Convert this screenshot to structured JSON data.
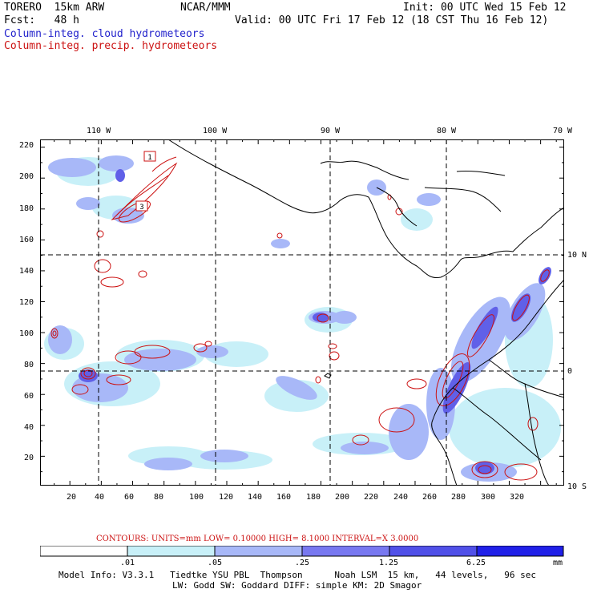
{
  "header": {
    "model": "TORERO  15km ARW",
    "org": "NCAR/MMM",
    "init": "Init: 00 UTC Wed 15 Feb 12",
    "fcst": "Fcst:   48 h",
    "valid": "Valid: 00 UTC Fri 17 Feb 12 (18 CST Thu 16 Feb 12)",
    "field1": "Column-integ. cloud hydrometeors",
    "field2": "Column-integ. precip. hydrometeors"
  },
  "colors": {
    "field1": "#2222cc",
    "field2": "#cc1111",
    "grid": "#000000",
    "shade": [
      "#ffffff",
      "#c8f0f8",
      "#a8b8f8",
      "#7878f0",
      "#5050e8",
      "#2020e8"
    ]
  },
  "map": {
    "lon_labels": [
      "110 W",
      "100 W",
      "90 W",
      "80 W",
      "70 W"
    ],
    "lat_labels": [
      "10 N",
      "0",
      "10 S"
    ],
    "x_ticks": [
      "20",
      "40",
      "60",
      "80",
      "100",
      "120",
      "140",
      "160",
      "180",
      "200",
      "220",
      "240",
      "260",
      "280",
      "300",
      "320"
    ],
    "y_ticks": [
      "20",
      "40",
      "60",
      "80",
      "100",
      "120",
      "140",
      "160",
      "180",
      "200",
      "220"
    ],
    "x_range": [
      1,
      335
    ],
    "y_range": [
      1,
      225
    ],
    "meridians_gridx": [
      40,
      113,
      186,
      260
    ],
    "parallels_gridy": [
      76,
      150
    ],
    "contour_labels": [
      "1",
      "3"
    ]
  },
  "contours": "CONTOURS:  UNITS=mm  LOW= 0.10000     HIGH=  8.1000     INTERVAL=X  3.0000",
  "legend": {
    "labels": [
      ".01",
      ".05",
      ".25",
      "1.25",
      "6.25"
    ],
    "unit": "mm"
  },
  "footer": {
    "line1": "Model Info: V3.3.1   Tiedtke YSU PBL  Thompson      Noah LSM  15 km,   44 levels,   96 sec",
    "line2": "LW: Godd SW: Goddard DIFF: simple KM: 2D Smagor"
  }
}
